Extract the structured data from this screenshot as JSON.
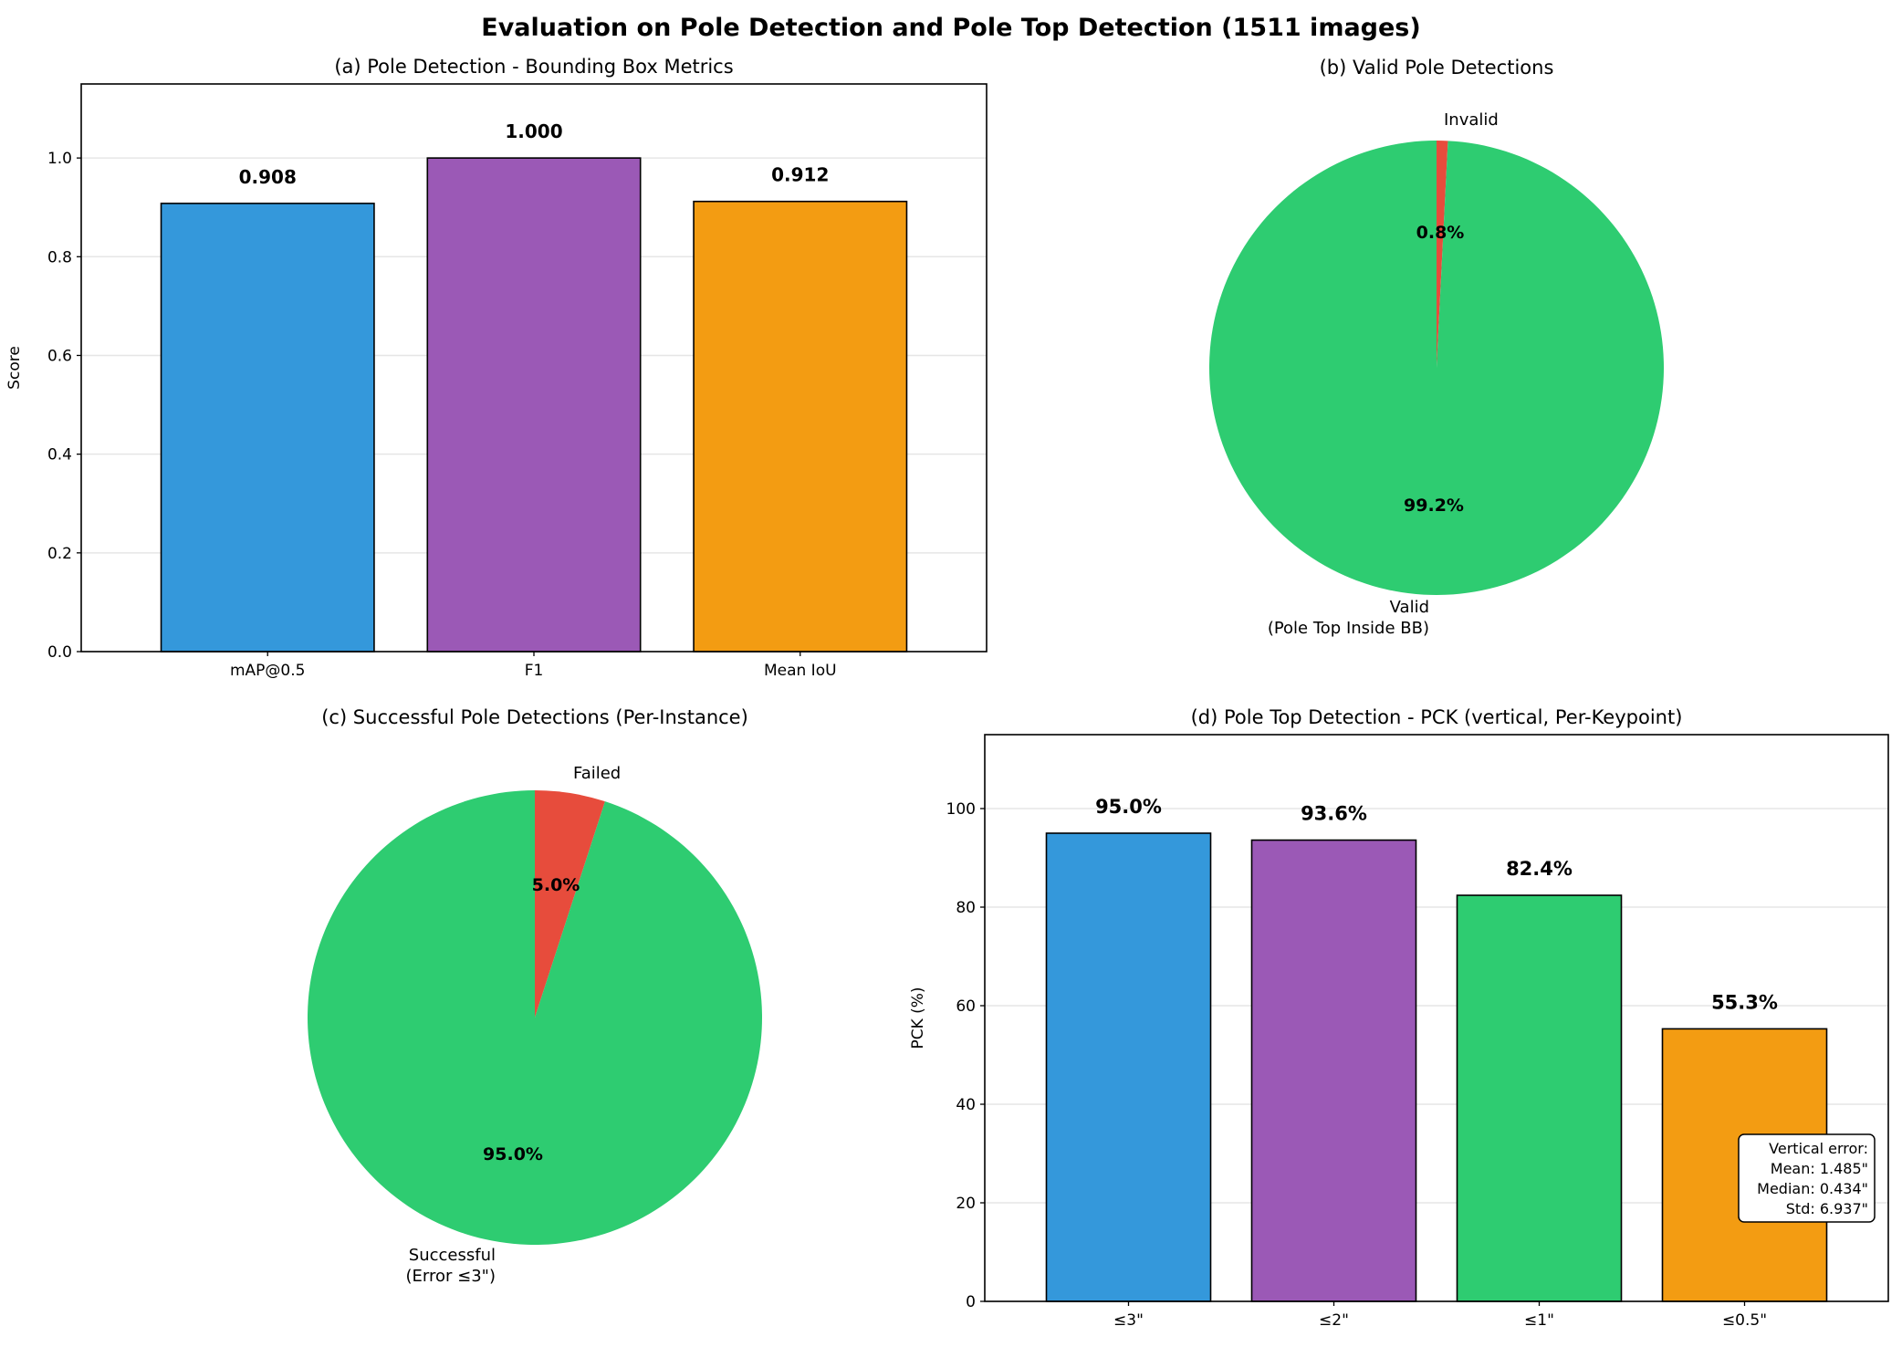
{
  "title": "Evaluation on Pole Detection and Pole Top Detection (1511 images)",
  "chart_data": [
    {
      "type": "bar",
      "title": "(a) Pole Detection - Bounding Box Metrics",
      "categories": [
        "mAP@0.5",
        "F1",
        "Mean IoU"
      ],
      "values": [
        0.908,
        1.0,
        0.912
      ],
      "value_labels": [
        "0.908",
        "1.000",
        "0.912"
      ],
      "colors": [
        "#3498db",
        "#9b59b6",
        "#f39c12"
      ],
      "xlabel": "",
      "ylabel": "Score",
      "ylim": [
        0,
        1.15
      ],
      "yticks": [
        0.0,
        0.2,
        0.4,
        0.6,
        0.8,
        1.0
      ],
      "ytick_labels": [
        "0.0",
        "0.2",
        "0.4",
        "0.6",
        "0.8",
        "1.0"
      ],
      "grid": "y"
    },
    {
      "type": "pie",
      "title": "(b) Valid Pole Detections",
      "labels": [
        "Invalid",
        "Valid\n(Pole Top Inside BB)"
      ],
      "label_lines": [
        [
          "Invalid"
        ],
        [
          "Valid",
          "(Pole Top Inside BB)"
        ]
      ],
      "values": [
        0.8,
        99.2
      ],
      "pct_labels": [
        "0.8%",
        "99.2%"
      ],
      "colors": [
        "#e74c3c",
        "#2ecc71"
      ]
    },
    {
      "type": "pie",
      "title": "(c) Successful Pole Detections (Per-Instance)",
      "labels": [
        "Failed",
        "Successful\n(Error ≤3\")"
      ],
      "label_lines": [
        [
          "Failed"
        ],
        [
          "Successful",
          "(Error ≤3\")"
        ]
      ],
      "values": [
        5.0,
        95.0
      ],
      "pct_labels": [
        "5.0%",
        "95.0%"
      ],
      "colors": [
        "#e74c3c",
        "#2ecc71"
      ]
    },
    {
      "type": "bar",
      "title": "(d) Pole Top Detection - PCK (vertical, Per-Keypoint)",
      "categories": [
        "≤3\"",
        "≤2\"",
        "≤1\"",
        "≤0.5\""
      ],
      "values": [
        95.0,
        93.6,
        82.4,
        55.3
      ],
      "value_labels": [
        "95.0%",
        "93.6%",
        "82.4%",
        "55.3%"
      ],
      "colors": [
        "#3498db",
        "#9b59b6",
        "#2ecc71",
        "#f39c12"
      ],
      "xlabel": "",
      "ylabel": "PCK (%)",
      "ylim": [
        0,
        115
      ],
      "yticks": [
        0,
        20,
        40,
        60,
        80,
        100
      ],
      "ytick_labels": [
        "0",
        "20",
        "40",
        "60",
        "80",
        "100"
      ],
      "grid": "y",
      "annotation": [
        "Vertical error:",
        "Mean: 1.485\"",
        "Median: 0.434\"",
        "Std: 6.937\""
      ]
    }
  ]
}
